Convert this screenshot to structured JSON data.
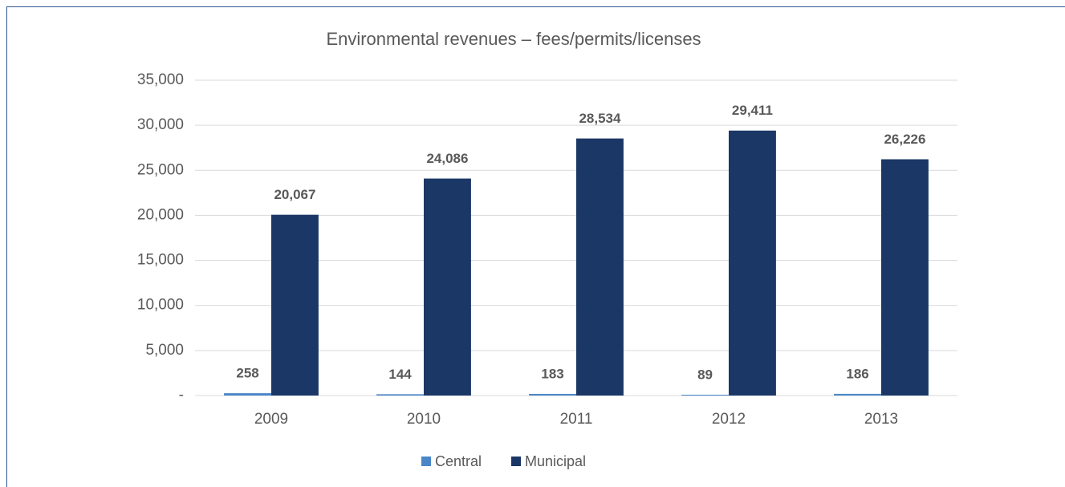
{
  "chart_data": {
    "type": "bar",
    "title": "Environmental revenues – fees/permits/licenses",
    "categories": [
      "2009",
      "2010",
      "2011",
      "2012",
      "2013"
    ],
    "series": [
      {
        "name": "Central",
        "color": "#4a86c8",
        "values": [
          258,
          144,
          183,
          89,
          186
        ],
        "value_labels": [
          "258",
          "144",
          "183",
          "89",
          "186"
        ]
      },
      {
        "name": "Municipal",
        "color": "#1b3766",
        "values": [
          20067,
          24086,
          28534,
          29411,
          26226
        ],
        "value_labels": [
          "20,067",
          "24,086",
          "28,534",
          "29,411",
          "26,226"
        ]
      }
    ],
    "ylim": [
      0,
      35000
    ],
    "yticks": [
      {
        "value": 0,
        "label": "-"
      },
      {
        "value": 5000,
        "label": "5,000"
      },
      {
        "value": 10000,
        "label": "10,000"
      },
      {
        "value": 15000,
        "label": "15,000"
      },
      {
        "value": 20000,
        "label": "20,000"
      },
      {
        "value": 25000,
        "label": "25,000"
      },
      {
        "value": 30000,
        "label": "30,000"
      },
      {
        "value": 35000,
        "label": "35,000"
      }
    ],
    "grid": true,
    "legend": "bottom"
  }
}
